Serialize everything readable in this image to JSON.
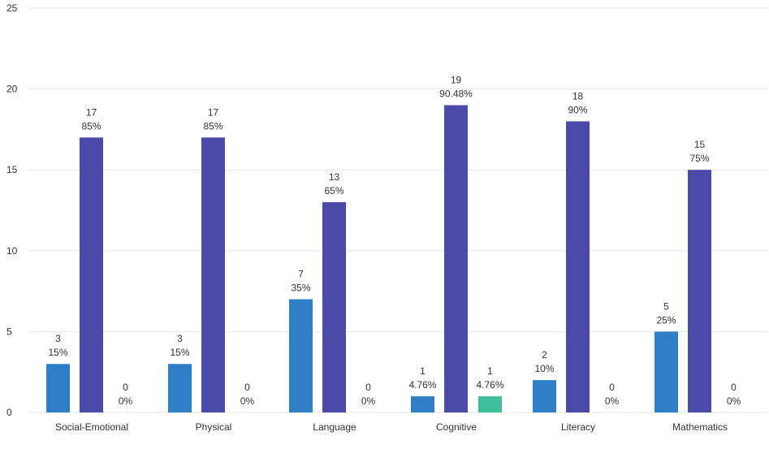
{
  "chart_data": {
    "type": "bar",
    "categories": [
      "Social-Emotional",
      "Physical",
      "Language",
      "Cognitive",
      "Literacy",
      "Mathematics"
    ],
    "series": [
      {
        "color": "#2f7fc6",
        "values": [
          3,
          3,
          7,
          1,
          2,
          5
        ],
        "labels": [
          [
            "3",
            "15%"
          ],
          [
            "3",
            "15%"
          ],
          [
            "7",
            "35%"
          ],
          [
            "1",
            "4.76%"
          ],
          [
            "2",
            "10%"
          ],
          [
            "5",
            "25%"
          ]
        ]
      },
      {
        "color": "#4b4aa8",
        "values": [
          17,
          17,
          13,
          19,
          18,
          15
        ],
        "labels": [
          [
            "17",
            "85%"
          ],
          [
            "17",
            "85%"
          ],
          [
            "13",
            "65%"
          ],
          [
            "19",
            "90.48%"
          ],
          [
            "18",
            "90%"
          ],
          [
            "15",
            "75%"
          ]
        ]
      },
      {
        "color": "#3fbf9a",
        "values": [
          0,
          0,
          0,
          1,
          0,
          0
        ],
        "labels": [
          [
            "0",
            "0%"
          ],
          [
            "0",
            "0%"
          ],
          [
            "0",
            "0%"
          ],
          [
            "1",
            "4.76%"
          ],
          [
            "0",
            "0%"
          ],
          [
            "0",
            "0%"
          ]
        ]
      }
    ],
    "yticks": [
      "0",
      "5",
      "10",
      "15",
      "20",
      "25"
    ],
    "ylim": [
      0,
      25
    ],
    "grid": true,
    "legend": "none"
  },
  "colors": {
    "grid": "#e6e6e6",
    "text": "#333333"
  }
}
